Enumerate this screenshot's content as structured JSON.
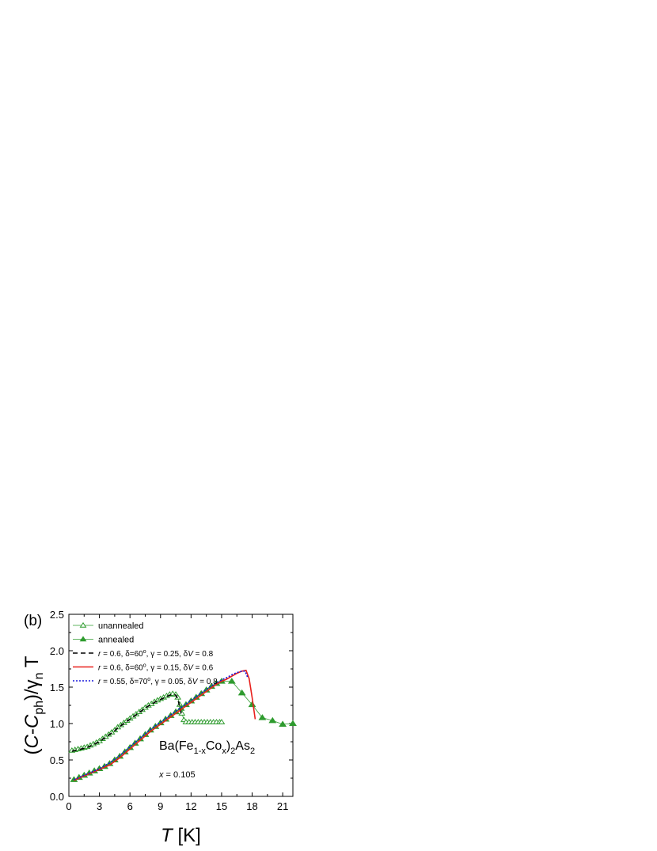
{
  "chart_data": {
    "type": "scatter",
    "panel_label": "(b)",
    "ylabel": {
      "parts": [
        {
          "t": "(",
          "i": false,
          "sub": false
        },
        {
          "t": "C",
          "i": true,
          "sub": false
        },
        {
          "t": "-",
          "i": false,
          "sub": false
        },
        {
          "t": "C",
          "i": true,
          "sub": false
        },
        {
          "t": "ph",
          "i": false,
          "sub": true
        },
        {
          "t": ")/",
          "i": false,
          "sub": false
        },
        {
          "t": "γ",
          "i": false,
          "sub": false
        },
        {
          "t": "n",
          "i": false,
          "sub": true
        },
        {
          "t": " T",
          "i": false,
          "sub": false
        }
      ]
    },
    "xlabel": {
      "parts": [
        {
          "t": "T",
          "i": true,
          "sub": false
        },
        {
          "t": " [K]",
          "i": false,
          "sub": false
        }
      ]
    },
    "xlim": [
      0,
      22
    ],
    "ylim": [
      0,
      2.5
    ],
    "xticks": [
      0,
      3,
      6,
      9,
      12,
      15,
      18,
      21
    ],
    "xtick_labels": [
      "0",
      "3",
      "6",
      "9",
      "12",
      "15",
      "18",
      "21"
    ],
    "yticks": [
      0,
      0.5,
      1.0,
      1.5,
      2.0,
      2.5
    ],
    "ytick_labels": [
      "0.0",
      "0.5",
      "1.0",
      "1.5",
      "2.0",
      "2.5"
    ],
    "legend_position": "top-left",
    "compound": {
      "parts": [
        {
          "t": "Ba(Fe",
          "sub": false
        },
        {
          "t": "1-x",
          "sub": true
        },
        {
          "t": "Co",
          "sub": false
        },
        {
          "t": "x",
          "sub": true
        },
        {
          "t": ")",
          "sub": false
        },
        {
          "t": "2",
          "sub": true
        },
        {
          "t": "As",
          "sub": false
        },
        {
          "t": "2",
          "sub": true
        }
      ]
    },
    "composition": {
      "var": "x",
      "rest": " = 0.105"
    },
    "series": [
      {
        "name": "unannealed",
        "style": "open-triangle",
        "color": "#2e9b2e",
        "x": [
          0.3,
          0.6,
          0.9,
          1.2,
          1.5,
          1.8,
          2.1,
          2.4,
          2.7,
          3.0,
          3.3,
          3.6,
          3.9,
          4.2,
          4.5,
          4.8,
          5.1,
          5.4,
          5.7,
          6.0,
          6.3,
          6.6,
          6.9,
          7.2,
          7.5,
          7.8,
          8.1,
          8.4,
          8.7,
          9.0,
          9.3,
          9.6,
          9.9,
          10.2,
          10.5,
          10.7,
          10.9,
          11.1,
          11.3,
          11.5,
          11.8,
          12.1,
          12.4,
          12.7,
          13.0,
          13.3,
          13.6,
          13.9,
          14.2,
          14.5,
          14.8,
          15.0
        ],
        "y": [
          0.63,
          0.64,
          0.65,
          0.66,
          0.67,
          0.68,
          0.7,
          0.72,
          0.74,
          0.76,
          0.79,
          0.82,
          0.85,
          0.88,
          0.91,
          0.95,
          0.98,
          1.01,
          1.04,
          1.07,
          1.1,
          1.13,
          1.16,
          1.19,
          1.22,
          1.25,
          1.27,
          1.3,
          1.32,
          1.34,
          1.36,
          1.38,
          1.4,
          1.41,
          1.4,
          1.36,
          1.26,
          1.14,
          1.05,
          1.02,
          1.02,
          1.02,
          1.02,
          1.02,
          1.02,
          1.02,
          1.02,
          1.02,
          1.02,
          1.02,
          1.02,
          1.02
        ]
      },
      {
        "name": "annealed",
        "style": "filled-triangle",
        "color": "#2e9b2e",
        "x": [
          0.5,
          1.0,
          1.5,
          2.0,
          2.5,
          3.0,
          3.5,
          4.0,
          4.5,
          5.0,
          5.5,
          6.0,
          6.5,
          7.0,
          7.5,
          8.0,
          8.5,
          9.0,
          9.5,
          10.0,
          10.5,
          11.0,
          11.5,
          12.0,
          12.5,
          13.0,
          13.5,
          14.0,
          14.5,
          15.0,
          16.0,
          17.0,
          18.0,
          19.0,
          20.0,
          21.0,
          22.0
        ],
        "y": [
          0.23,
          0.26,
          0.29,
          0.32,
          0.35,
          0.38,
          0.41,
          0.45,
          0.5,
          0.55,
          0.61,
          0.67,
          0.73,
          0.79,
          0.85,
          0.91,
          0.96,
          1.01,
          1.06,
          1.11,
          1.16,
          1.21,
          1.26,
          1.31,
          1.36,
          1.41,
          1.46,
          1.51,
          1.55,
          1.58,
          1.58,
          1.42,
          1.26,
          1.08,
          1.04,
          0.99,
          1.0
        ]
      },
      {
        "name": "r = 0.6, δ=60°, γ = 0.25, δV = 0.8",
        "label_parts": [
          {
            "t": "r",
            "i": true
          },
          {
            "t": " = 0.6, δ=60"
          },
          {
            "t": "o",
            "sup": true
          },
          {
            "t": ", γ = 0.25, δ"
          },
          {
            "t": "V",
            "i": true
          },
          {
            "t": " = 0.8"
          }
        ],
        "style": "dashed",
        "color": "#000000",
        "x": [
          0.3,
          0.6,
          0.9,
          1.2,
          1.5,
          1.8,
          2.1,
          2.4,
          2.7,
          3.0,
          3.3,
          3.6,
          3.9,
          4.2,
          4.5,
          4.8,
          5.1,
          5.4,
          5.7,
          6.0,
          6.3,
          6.6,
          6.9,
          7.2,
          7.5,
          7.8,
          8.1,
          8.4,
          8.7,
          9.0,
          9.3,
          9.6,
          9.9,
          10.2,
          10.5,
          10.7,
          10.9,
          11.1
        ],
        "y": [
          0.62,
          0.63,
          0.64,
          0.65,
          0.66,
          0.67,
          0.69,
          0.71,
          0.73,
          0.75,
          0.78,
          0.81,
          0.84,
          0.87,
          0.9,
          0.94,
          0.97,
          1.0,
          1.03,
          1.06,
          1.09,
          1.12,
          1.15,
          1.18,
          1.21,
          1.24,
          1.26,
          1.29,
          1.31,
          1.33,
          1.35,
          1.37,
          1.39,
          1.4,
          1.39,
          1.34,
          1.22,
          1.1
        ]
      },
      {
        "name": "r = 0.6, δ=60°, γ = 0.15, δV = 0.6",
        "label_parts": [
          {
            "t": "r",
            "i": true
          },
          {
            "t": " = 0.6, δ=60"
          },
          {
            "t": "o",
            "sup": true
          },
          {
            "t": ", γ = 0.15, δ"
          },
          {
            "t": "V",
            "i": true
          },
          {
            "t": " = 0.6"
          }
        ],
        "style": "solid",
        "color": "#e8201c",
        "x": [
          0.5,
          1.0,
          1.5,
          2.0,
          2.5,
          3.0,
          3.5,
          4.0,
          4.5,
          5.0,
          5.5,
          6.0,
          6.5,
          7.0,
          7.5,
          8.0,
          8.5,
          9.0,
          9.5,
          10.0,
          10.5,
          11.0,
          11.5,
          12.0,
          12.5,
          13.0,
          13.5,
          14.0,
          14.5,
          15.0,
          15.5,
          16.0,
          16.5,
          17.0,
          17.4,
          17.7,
          18.0,
          18.3
        ],
        "y": [
          0.22,
          0.25,
          0.28,
          0.31,
          0.34,
          0.37,
          0.4,
          0.43,
          0.48,
          0.53,
          0.59,
          0.65,
          0.71,
          0.77,
          0.83,
          0.89,
          0.94,
          0.99,
          1.04,
          1.09,
          1.14,
          1.19,
          1.24,
          1.29,
          1.34,
          1.39,
          1.44,
          1.49,
          1.54,
          1.58,
          1.61,
          1.65,
          1.69,
          1.72,
          1.73,
          1.62,
          1.36,
          1.06
        ]
      },
      {
        "name": "r = 0.55, δ=70°, γ = 0.05, δV = 0.8",
        "label_parts": [
          {
            "t": "r",
            "i": true
          },
          {
            "t": " = 0.55, δ=70"
          },
          {
            "t": "o",
            "sup": true
          },
          {
            "t": ", γ = 0.05, δ"
          },
          {
            "t": "V",
            "i": true
          },
          {
            "t": " = 0.8"
          }
        ],
        "style": "dotted",
        "color": "#1a1adc",
        "x": [
          0.5,
          1.0,
          1.5,
          2.0,
          2.5,
          3.0,
          3.5,
          4.0,
          4.5,
          5.0,
          5.5,
          6.0,
          6.5,
          7.0,
          7.5,
          8.0,
          8.5,
          9.0,
          9.5,
          10.0,
          10.5,
          11.0,
          11.5,
          12.0,
          12.5,
          13.0,
          13.5,
          14.0,
          14.5,
          15.0,
          15.5,
          16.0,
          16.5,
          17.0,
          17.3,
          17.6
        ],
        "y": [
          0.23,
          0.26,
          0.29,
          0.32,
          0.35,
          0.38,
          0.42,
          0.46,
          0.51,
          0.56,
          0.62,
          0.68,
          0.74,
          0.8,
          0.86,
          0.92,
          0.97,
          1.02,
          1.07,
          1.12,
          1.17,
          1.22,
          1.27,
          1.32,
          1.37,
          1.42,
          1.47,
          1.52,
          1.56,
          1.6,
          1.63,
          1.67,
          1.7,
          1.72,
          1.72,
          1.62
        ]
      }
    ]
  }
}
